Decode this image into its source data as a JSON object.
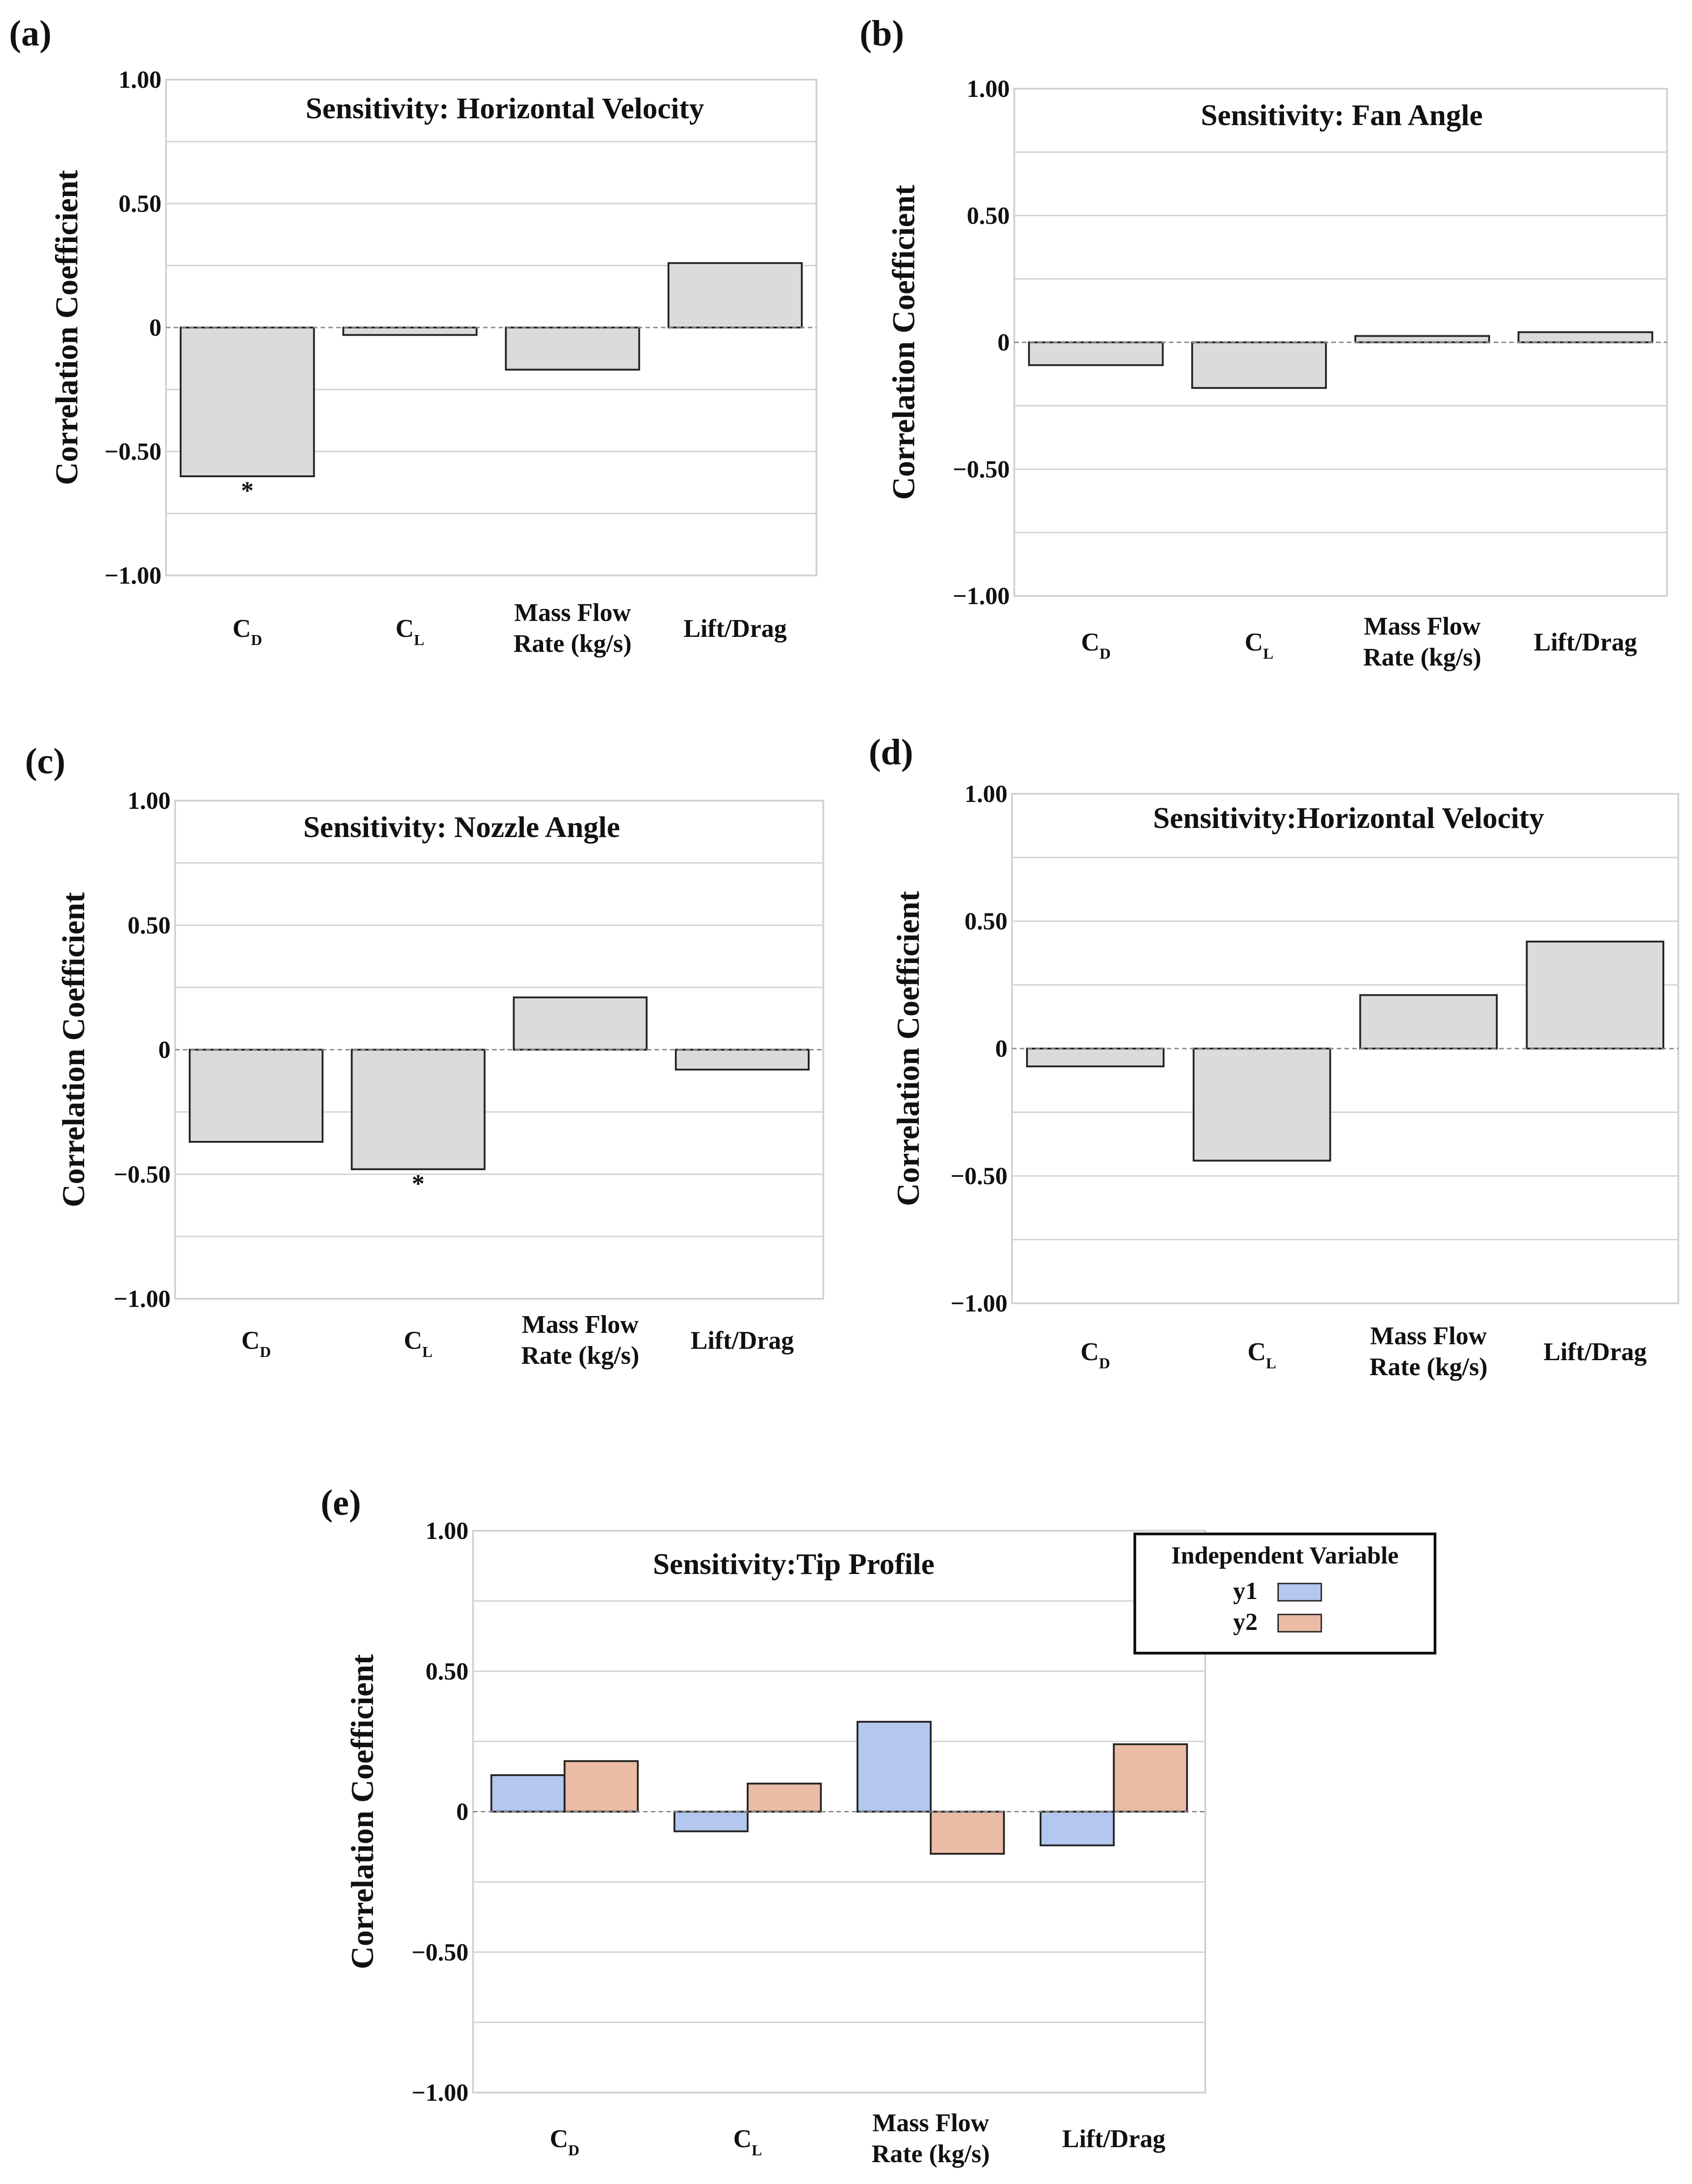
{
  "chart_data": [
    {
      "panel": "(a)",
      "type": "bar",
      "title": "Sensitivity: Horizontal Velocity",
      "ylabel": "Correlation Coefficient",
      "ylim": [
        -1.0,
        1.0
      ],
      "yticks": [
        1.0,
        0.5,
        0,
        -0.5,
        -1.0
      ],
      "ytick_labels": [
        "1.00",
        "0.50",
        "0",
        "−0.50",
        "−1.00"
      ],
      "categories": [
        {
          "main": "C",
          "sub": "D"
        },
        {
          "main": "C",
          "sub": "L"
        },
        {
          "lines": [
            "Mass Flow",
            "Rate (kg/s)"
          ]
        },
        {
          "lines": [
            "Lift/Drag"
          ]
        }
      ],
      "series": [
        {
          "name": "",
          "values": [
            -0.6,
            -0.03,
            -0.17,
            0.26
          ]
        }
      ],
      "significance": [
        "*",
        "",
        "",
        ""
      ]
    },
    {
      "panel": "(b)",
      "type": "bar",
      "title": "Sensitivity: Fan Angle",
      "ylabel": "Correlation Coefficient",
      "ylim": [
        -1.0,
        1.0
      ],
      "yticks": [
        1.0,
        0.5,
        0,
        -0.5,
        -1.0
      ],
      "ytick_labels": [
        "1.00",
        "0.50",
        "0",
        "−0.50",
        "−1.00"
      ],
      "categories": [
        {
          "main": "C",
          "sub": "D"
        },
        {
          "main": "C",
          "sub": "L"
        },
        {
          "lines": [
            "Mass Flow",
            "Rate (kg/s)"
          ]
        },
        {
          "lines": [
            "Lift/Drag"
          ]
        }
      ],
      "series": [
        {
          "name": "",
          "values": [
            -0.09,
            -0.18,
            0.025,
            0.04
          ]
        }
      ],
      "significance": [
        "",
        "",
        "",
        ""
      ]
    },
    {
      "panel": "(c)",
      "type": "bar",
      "title": "Sensitivity: Nozzle Angle",
      "ylabel": "Correlation Coefficient",
      "ylim": [
        -1.0,
        1.0
      ],
      "yticks": [
        1.0,
        0.5,
        0,
        -0.5,
        -1.0
      ],
      "ytick_labels": [
        "1.00",
        "0.50",
        "0",
        "−0.50",
        "−1.00"
      ],
      "categories": [
        {
          "main": "C",
          "sub": "D"
        },
        {
          "main": "C",
          "sub": "L"
        },
        {
          "lines": [
            "Mass Flow",
            "Rate (kg/s)"
          ]
        },
        {
          "lines": [
            "Lift/Drag"
          ]
        }
      ],
      "series": [
        {
          "name": "",
          "values": [
            -0.37,
            -0.48,
            0.21,
            -0.08
          ]
        }
      ],
      "significance": [
        "",
        "*",
        "",
        ""
      ]
    },
    {
      "panel": "(d)",
      "type": "bar",
      "title": "Sensitivity:Horizontal Velocity",
      "ylabel": "Correlation Coefficient",
      "ylim": [
        -1.0,
        1.0
      ],
      "yticks": [
        1.0,
        0.5,
        0,
        -0.5,
        -1.0
      ],
      "ytick_labels": [
        "1.00",
        "0.50",
        "0",
        "−0.50",
        "−1.00"
      ],
      "categories": [
        {
          "main": "C",
          "sub": "D"
        },
        {
          "main": "C",
          "sub": "L"
        },
        {
          "lines": [
            "Mass Flow",
            "Rate (kg/s)"
          ]
        },
        {
          "lines": [
            "Lift/Drag"
          ]
        }
      ],
      "series": [
        {
          "name": "",
          "values": [
            -0.07,
            -0.44,
            0.21,
            0.42
          ]
        }
      ],
      "significance": [
        "",
        "",
        "",
        ""
      ]
    },
    {
      "panel": "(e)",
      "type": "bar",
      "title": "Sensitivity:Tip Profile",
      "ylabel": "Correlation Coefficient",
      "ylim": [
        -1.0,
        1.0
      ],
      "yticks": [
        1.0,
        0.5,
        0,
        -0.5,
        -1.0
      ],
      "ytick_labels": [
        "1.00",
        "0.50",
        "0",
        "−0.50",
        "−1.00"
      ],
      "categories": [
        {
          "main": "C",
          "sub": "D"
        },
        {
          "main": "C",
          "sub": "L"
        },
        {
          "lines": [
            "Mass Flow",
            "Rate (kg/s)"
          ]
        },
        {
          "lines": [
            "Lift/Drag"
          ]
        }
      ],
      "legend": {
        "title": "Independent Variable",
        "position": "top-right"
      },
      "series": [
        {
          "name": "y1",
          "values": [
            0.13,
            -0.07,
            0.32,
            -0.12
          ]
        },
        {
          "name": "y2",
          "values": [
            0.18,
            0.1,
            -0.15,
            0.24
          ]
        }
      ],
      "significance": [
        "",
        "",
        "",
        ""
      ]
    }
  ],
  "colors": {
    "bar_single": "#dcdbdc",
    "y1": "#b3c7ef",
    "y2": "#eabba5",
    "bar_stroke": "#222222"
  }
}
